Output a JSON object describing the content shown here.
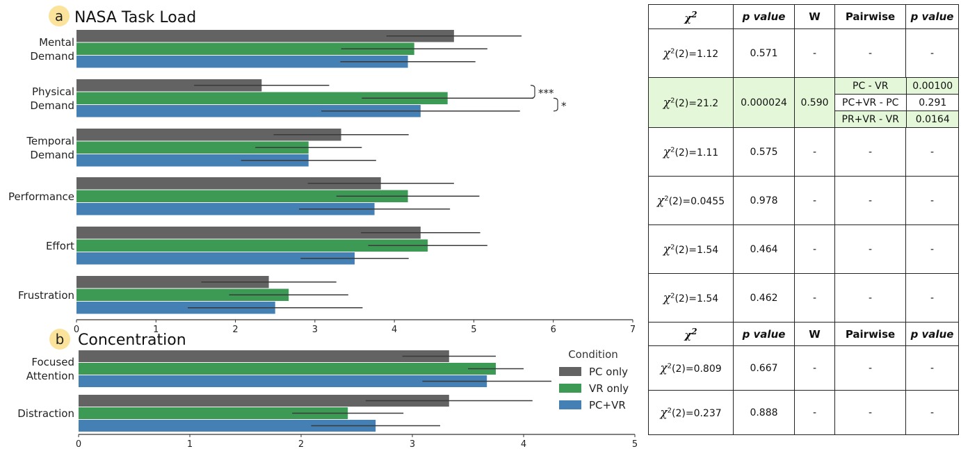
{
  "chart_data": [
    {
      "type": "bar",
      "panel_letter": "a",
      "title": "NASA Task Load",
      "categories": [
        "Mental\nDemand",
        "Physical\nDemand",
        "Temporal\nDemand",
        "Performance",
        "Effort",
        "Frustration"
      ],
      "series": [
        {
          "name": "PC only",
          "color": "#636363",
          "values": [
            4.75,
            2.33,
            3.33,
            3.83,
            4.33,
            2.42
          ],
          "err": [
            0.85,
            0.85,
            0.85,
            0.92,
            0.75,
            0.85
          ]
        },
        {
          "name": "VR only",
          "color": "#3d9a55",
          "values": [
            4.25,
            4.67,
            2.92,
            4.17,
            4.42,
            2.67
          ],
          "err": [
            0.92,
            1.08,
            0.67,
            0.9,
            0.75,
            0.75
          ]
        },
        {
          "name": "PC+VR",
          "color": "#4480b3",
          "values": [
            4.17,
            4.33,
            2.92,
            3.75,
            3.5,
            2.5
          ],
          "err": [
            0.85,
            1.25,
            0.85,
            0.95,
            0.68,
            1.1
          ]
        }
      ],
      "xlim": [
        0,
        7
      ],
      "xticks": [
        "0",
        "1",
        "2",
        "3",
        "4",
        "5",
        "6",
        "7"
      ],
      "significance": [
        {
          "category": 1,
          "from": 0,
          "to": 1,
          "label": "***"
        },
        {
          "category": 1,
          "from": 1,
          "to": 2,
          "label": "*"
        }
      ]
    },
    {
      "type": "bar",
      "panel_letter": "b",
      "title": "Concentration",
      "categories": [
        "Focused\nAttention",
        "Distraction"
      ],
      "series": [
        {
          "name": "PC only",
          "color": "#636363",
          "values": [
            3.33,
            3.33
          ],
          "err": [
            0.42,
            0.75
          ]
        },
        {
          "name": "VR only",
          "color": "#3d9a55",
          "values": [
            3.75,
            2.42
          ],
          "err": [
            0.25,
            0.5
          ]
        },
        {
          "name": "PC+VR",
          "color": "#4480b3",
          "values": [
            3.67,
            2.67
          ],
          "err": [
            0.58,
            0.58
          ]
        }
      ],
      "xlim": [
        0,
        5
      ],
      "xticks": [
        "0",
        "1",
        "2",
        "3",
        "4",
        "5"
      ],
      "legend": {
        "title": "Condition",
        "placement": "right"
      }
    }
  ],
  "stats_table": {
    "headers": [
      "χ²",
      "p value",
      "W",
      "Pairwise",
      "p value"
    ],
    "nasa_rows": [
      {
        "chi": "(2)=1.12",
        "p": "0.571",
        "w": "-",
        "pairs": [
          {
            "label": "-",
            "p": "-"
          }
        ]
      },
      {
        "chi": "(2)=21.2",
        "p": "0.000024",
        "w": "0.590",
        "highlight": true,
        "pairs": [
          {
            "label": "PC - VR",
            "p": "0.00100",
            "sig": true
          },
          {
            "label": "PC+VR - PC",
            "p": "0.291",
            "sig": false
          },
          {
            "label": "PR+VR - VR",
            "p": "0.0164",
            "sig": true
          }
        ]
      },
      {
        "chi": "(2)=1.11",
        "p": "0.575",
        "w": "-",
        "pairs": [
          {
            "label": "-",
            "p": "-"
          }
        ]
      },
      {
        "chi": "(2)=0.0455",
        "p": "0.978",
        "w": "-",
        "pairs": [
          {
            "label": "-",
            "p": "-"
          }
        ]
      },
      {
        "chi": "(2)=1.54",
        "p": "0.464",
        "w": "-",
        "pairs": [
          {
            "label": "-",
            "p": "-"
          }
        ]
      },
      {
        "chi": "(2)=1.54",
        "p": "0.462",
        "w": "-",
        "pairs": [
          {
            "label": "-",
            "p": "-"
          }
        ]
      }
    ],
    "conc_rows": [
      {
        "chi": "(2)=0.809",
        "p": "0.667",
        "w": "-",
        "pairs": [
          {
            "label": "-",
            "p": "-"
          }
        ]
      },
      {
        "chi": "(2)=0.237",
        "p": "0.888",
        "w": "-",
        "pairs": [
          {
            "label": "-",
            "p": "-"
          }
        ]
      }
    ],
    "highlight_color": "#e4f7d9"
  }
}
